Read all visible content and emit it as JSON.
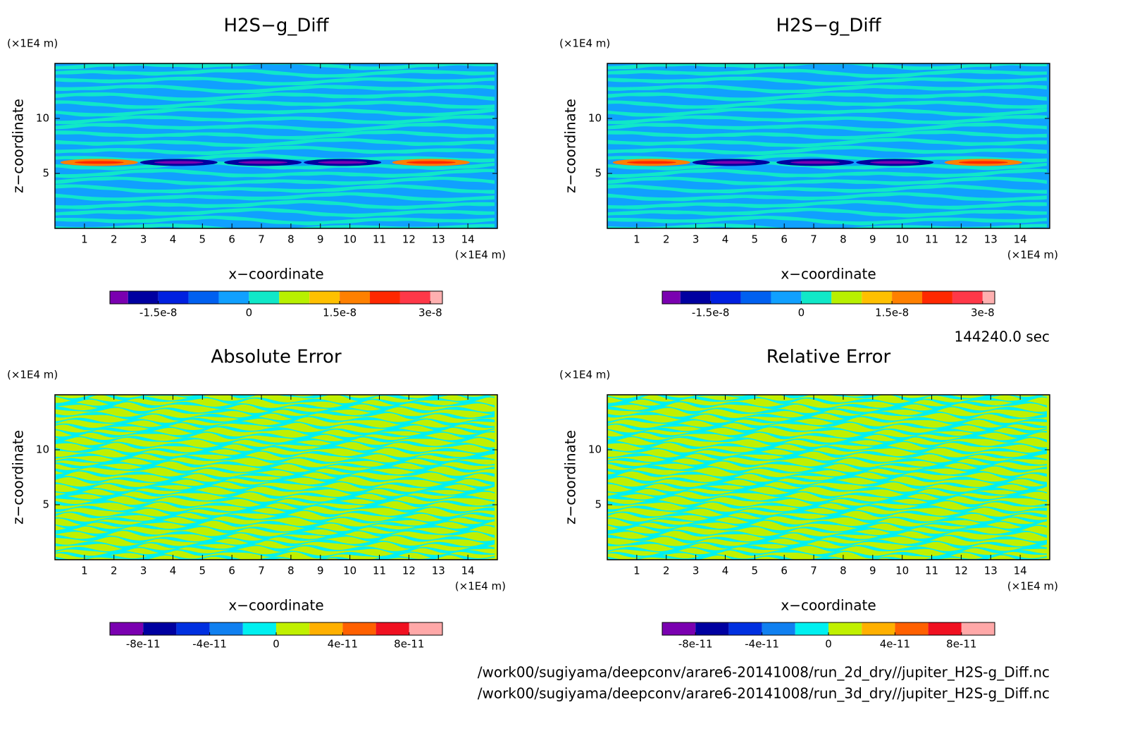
{
  "chart_data": [
    {
      "type": "contour",
      "title": "H2S−g_Diff",
      "x_label": "x−coordinate",
      "y_label": "z−coordinate",
      "x_unit": "(×1E4 m)",
      "y_unit": "(×1E4 m)",
      "xlim": [
        0,
        15
      ],
      "ylim": [
        0,
        15
      ],
      "xticks": [
        1,
        2,
        3,
        4,
        5,
        6,
        7,
        8,
        9,
        10,
        11,
        12,
        13,
        14
      ],
      "yticks": [
        5,
        10
      ],
      "colorbar": {
        "lim": [
          -2.3e-08,
          3.2e-08
        ],
        "levels": [
          -2e-08,
          -1.5e-08,
          -1e-08,
          -5e-09,
          0,
          5e-09,
          1e-08,
          1.5e-08,
          2e-08,
          2.5e-08,
          3e-08
        ],
        "colors": [
          "#7a00b0",
          "#0000a0",
          "#0020e0",
          "#0060f0",
          "#10a0ff",
          "#10e8c8",
          "#b8f000",
          "#ffc000",
          "#ff8000",
          "#ff2800",
          "#ff3848",
          "#ffb0b0"
        ],
        "ticks": [
          -1.5e-08,
          0,
          1.5e-08,
          3e-08
        ]
      }
    },
    {
      "type": "contour",
      "title": "H2S−g_Diff",
      "x_label": "x−coordinate",
      "y_label": "z−coordinate",
      "x_unit": "(×1E4 m)",
      "y_unit": "(×1E4 m)",
      "xlim": [
        0,
        15
      ],
      "ylim": [
        0,
        15
      ],
      "xticks": [
        1,
        2,
        3,
        4,
        5,
        6,
        7,
        8,
        9,
        10,
        11,
        12,
        13,
        14
      ],
      "yticks": [
        5,
        10
      ],
      "colorbar": {
        "lim": [
          -2.3e-08,
          3.2e-08
        ],
        "levels": [
          -2e-08,
          -1.5e-08,
          -1e-08,
          -5e-09,
          0,
          5e-09,
          1e-08,
          1.5e-08,
          2e-08,
          2.5e-08,
          3e-08
        ],
        "colors": [
          "#7a00b0",
          "#0000a0",
          "#0020e0",
          "#0060f0",
          "#10a0ff",
          "#10e8c8",
          "#b8f000",
          "#ffc000",
          "#ff8000",
          "#ff2800",
          "#ff3848",
          "#ffb0b0"
        ],
        "ticks": [
          -1.5e-08,
          0,
          1.5e-08,
          3e-08
        ]
      }
    },
    {
      "type": "contour",
      "title": "Absolute Error",
      "x_label": "x−coordinate",
      "y_label": "z−coordinate",
      "x_unit": "(×1E4 m)",
      "y_unit": "(×1E4 m)",
      "xlim": [
        0,
        15
      ],
      "ylim": [
        0,
        15
      ],
      "xticks": [
        1,
        2,
        3,
        4,
        5,
        6,
        7,
        8,
        9,
        10,
        11,
        12,
        13,
        14
      ],
      "yticks": [
        5,
        10
      ],
      "colorbar": {
        "lim": [
          -1e-10,
          1e-10
        ],
        "levels": [
          -8e-11,
          -6e-11,
          -4e-11,
          -2e-11,
          0,
          2e-11,
          4e-11,
          6e-11,
          8e-11
        ],
        "colors": [
          "#7a00b0",
          "#0000a0",
          "#0030e0",
          "#1080f0",
          "#00f0f0",
          "#c0f000",
          "#ffb000",
          "#ff6000",
          "#f01020",
          "#ffa8a8"
        ],
        "ticks": [
          -8e-11,
          -4e-11,
          0,
          4e-11,
          8e-11
        ]
      }
    },
    {
      "type": "contour",
      "title": "Relative Error",
      "x_label": "x−coordinate",
      "y_label": "z−coordinate",
      "x_unit": "(×1E4 m)",
      "y_unit": "(×1E4 m)",
      "xlim": [
        0,
        15
      ],
      "ylim": [
        0,
        15
      ],
      "xticks": [
        1,
        2,
        3,
        4,
        5,
        6,
        7,
        8,
        9,
        10,
        11,
        12,
        13,
        14
      ],
      "yticks": [
        5,
        10
      ],
      "colorbar": {
        "lim": [
          -1e-10,
          1e-10
        ],
        "levels": [
          -8e-11,
          -6e-11,
          -4e-11,
          -2e-11,
          0,
          2e-11,
          4e-11,
          6e-11,
          8e-11
        ],
        "colors": [
          "#7a00b0",
          "#0000a0",
          "#0030e0",
          "#1080f0",
          "#00f0f0",
          "#c0f000",
          "#ffb000",
          "#ff6000",
          "#f01020",
          "#ffa8a8"
        ],
        "ticks": [
          -8e-11,
          -4e-11,
          0,
          4e-11,
          8e-11
        ]
      }
    }
  ],
  "footer": {
    "time": "144240.0 sec",
    "files": [
      "/work00/sugiyama/deepconv/arare6-20141008/run_2d_dry//jupiter_H2S-g_Diff.nc",
      "/work00/sugiyama/deepconv/arare6-20141008/run_3d_dry//jupiter_H2S-g_Diff.nc"
    ]
  }
}
